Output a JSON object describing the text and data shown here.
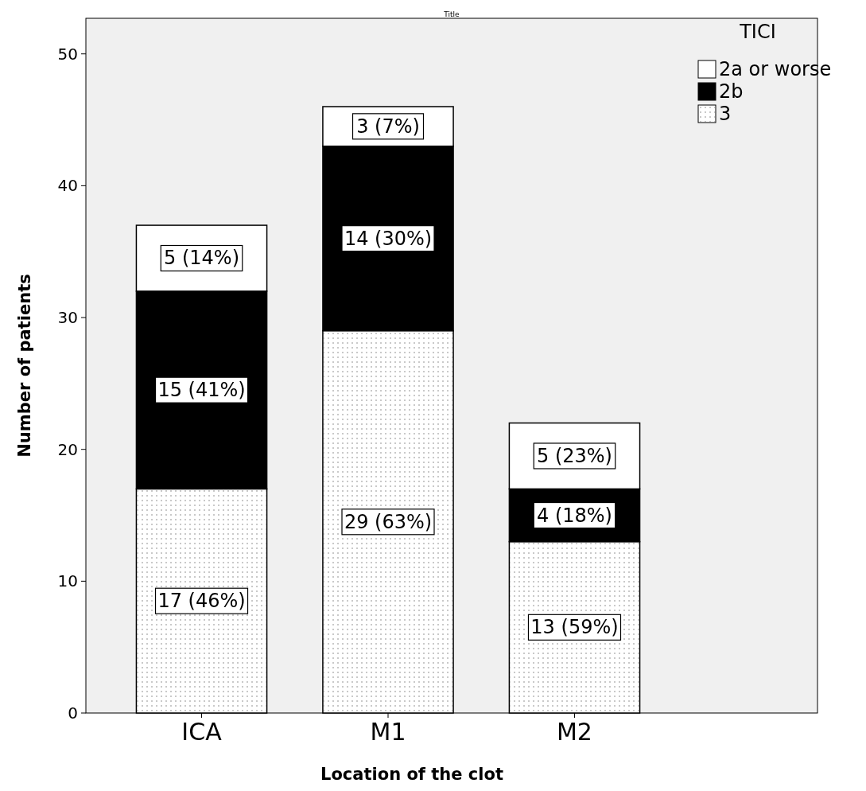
{
  "chart_data": {
    "type": "bar",
    "title": "Title",
    "xlabel": "Location of the clot",
    "ylabel": "Number of patients",
    "legend_title": "TICI",
    "categories": [
      "ICA",
      "M1",
      "M2"
    ],
    "stacked": true,
    "ylim": [
      0,
      52.7
    ],
    "yticks": [
      0,
      10,
      20,
      30,
      40,
      50
    ],
    "grid": false,
    "legend": "top right",
    "series": [
      {
        "name": "3",
        "color": "#ffffff",
        "values": [
          17,
          29,
          13
        ],
        "value_labels": [
          "17 (46%)",
          "29 (63%)",
          "13 (59%)"
        ]
      },
      {
        "name": "2b",
        "color": "#000000",
        "values": [
          15,
          14,
          4
        ],
        "value_labels": [
          "15 (41%)",
          "14 (30%)",
          "4 (18%)"
        ]
      },
      {
        "name": "2a or worse",
        "color": "#ffffff",
        "values": [
          5,
          3,
          5
        ],
        "value_labels": [
          "5 (14%)",
          "3 (7%)",
          "5 (23%)"
        ]
      }
    ]
  }
}
